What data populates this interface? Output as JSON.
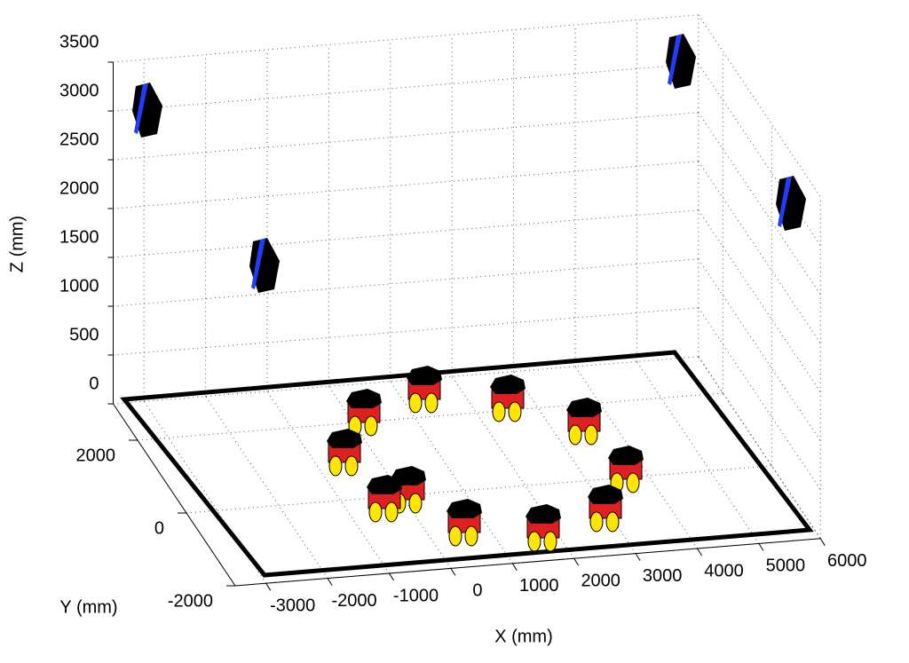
{
  "chart_data": {
    "type": "scene3d",
    "x_label": "X (mm)",
    "y_label": "Y (mm)",
    "z_label": "Z (mm)",
    "xlim": [
      -3500,
      6000
    ],
    "ylim": [
      -2000,
      3000
    ],
    "zlim": [
      0,
      3500
    ],
    "xticks": [
      -3000,
      -2000,
      -1000,
      0,
      1000,
      2000,
      3000,
      4000,
      5000,
      6000
    ],
    "yticks": [
      -2000,
      0,
      2000
    ],
    "zticks": [
      0,
      500,
      1000,
      1500,
      2000,
      2500,
      3000,
      3500
    ],
    "grid": true
  }
}
